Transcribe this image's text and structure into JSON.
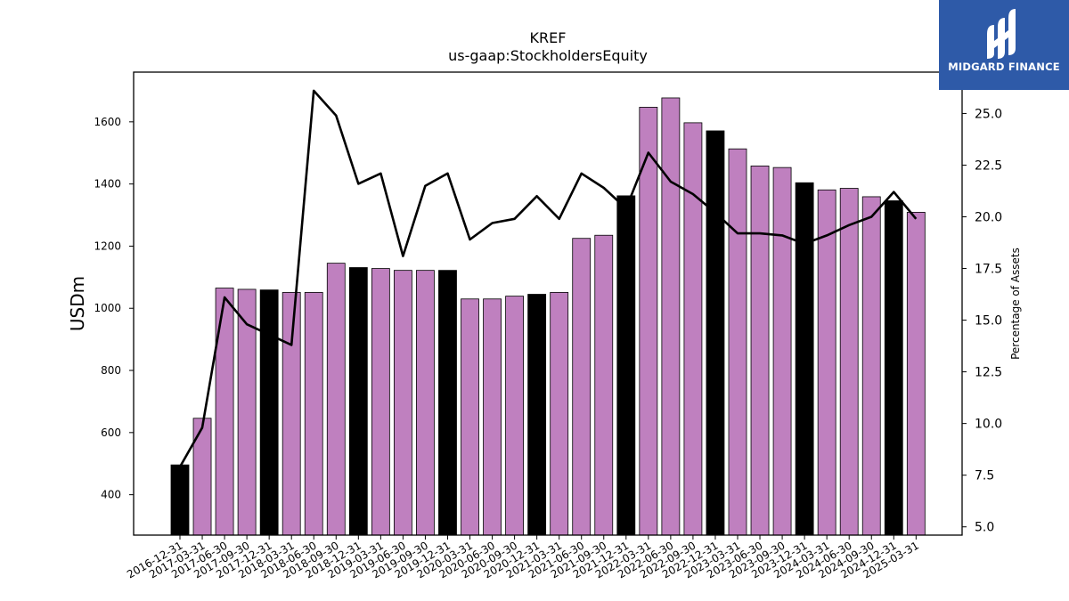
{
  "logo": {
    "text": "MIDGARD FINANCE"
  },
  "chart_data": {
    "type": "bar",
    "title": "KREF",
    "subtitle": "us-gaap:StockholdersEquity",
    "ylabel": "USDm",
    "ylabel_right": "Percentage of Assets",
    "ylim": [
      270,
      1760
    ],
    "ylim_right": [
      4.6,
      27.0
    ],
    "yticks": [
      400,
      600,
      800,
      1000,
      1200,
      1400,
      1600
    ],
    "yticks_right": [
      "5.0",
      "7.5",
      "10.0",
      "12.5",
      "15.0",
      "17.5",
      "20.0",
      "22.5",
      "25.0"
    ],
    "grid": false,
    "colors": {
      "bar": "#bf80bf",
      "bar_highlight": "#000000",
      "line": "#000000"
    },
    "categories": [
      "2016-12-31",
      "2017-03-31",
      "2017-06-30",
      "2017-09-30",
      "2017-12-31",
      "2018-03-31",
      "2018-06-30",
      "2018-09-30",
      "2018-12-31",
      "2019-03-31",
      "2019-06-30",
      "2019-09-30",
      "2019-12-31",
      "2020-03-31",
      "2020-06-30",
      "2020-09-30",
      "2020-12-31",
      "2021-03-31",
      "2021-06-30",
      "2021-09-30",
      "2021-12-31",
      "2022-03-31",
      "2022-06-30",
      "2022-09-30",
      "2022-12-31",
      "2023-03-31",
      "2023-06-30",
      "2023-09-30",
      "2023-12-31",
      "2024-03-31",
      "2024-06-30",
      "2024-09-30",
      "2024-12-31",
      "2025-03-31"
    ],
    "series": [
      {
        "name": "",
        "type": "bar",
        "values": [
          496,
          646,
          1065,
          1061,
          1059,
          1051,
          1051,
          1145,
          1131,
          1128,
          1122,
          1122,
          1122,
          1030,
          1030,
          1039,
          1045,
          1051,
          1225,
          1235,
          1362,
          1647,
          1677,
          1597,
          1571,
          1513,
          1458,
          1453,
          1404,
          1381,
          1386,
          1359,
          1346,
          1309
        ],
        "highlight": [
          true,
          false,
          false,
          false,
          true,
          false,
          false,
          false,
          true,
          false,
          false,
          false,
          true,
          false,
          false,
          false,
          true,
          false,
          false,
          false,
          true,
          false,
          false,
          false,
          true,
          false,
          false,
          false,
          true,
          false,
          false,
          false,
          true,
          false
        ]
      },
      {
        "name": "",
        "type": "line",
        "axis": "right",
        "values": [
          7.9,
          9.8,
          16.1,
          14.8,
          14.3,
          13.8,
          26.1,
          24.9,
          21.6,
          22.1,
          18.1,
          21.5,
          22.1,
          18.9,
          19.7,
          19.9,
          21.0,
          19.9,
          22.1,
          21.4,
          20.4,
          23.1,
          21.7,
          21.1,
          20.2,
          19.2,
          19.2,
          19.1,
          18.7,
          19.1,
          19.6,
          20.0,
          21.2,
          19.9
        ]
      }
    ]
  }
}
